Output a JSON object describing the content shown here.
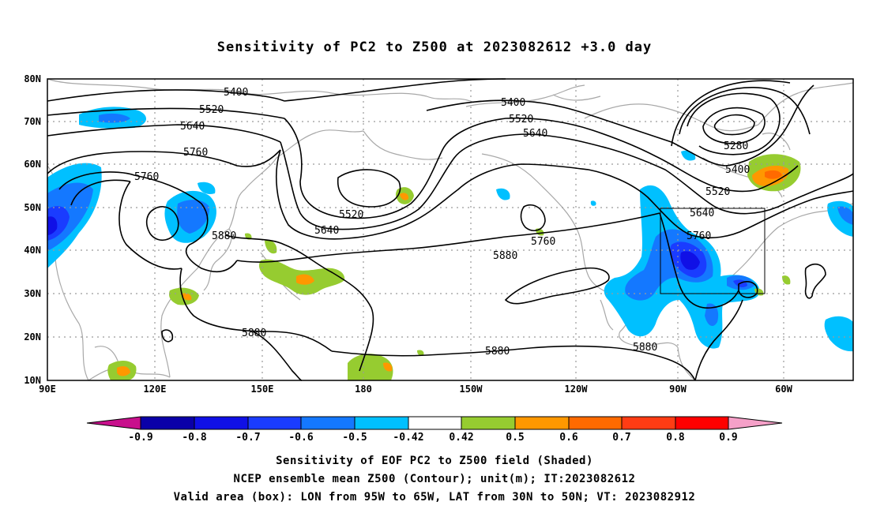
{
  "title": "Sensitivity of PC2 to Z500 at 2023082612 +3.0 day",
  "map": {
    "lat_ticks": [
      "80N",
      "70N",
      "60N",
      "50N",
      "40N",
      "30N",
      "20N",
      "10N"
    ],
    "lon_ticks": [
      "90E",
      "120E",
      "150E",
      "180",
      "150W",
      "120W",
      "90W",
      "60W"
    ],
    "contour_labels": [
      "5400",
      "5520",
      "5640",
      "5760",
      "5760",
      "5880",
      "5400",
      "5520",
      "5640",
      "5520",
      "5640",
      "5760",
      "5880",
      "5880",
      "5880",
      "5880",
      "5280",
      "5400",
      "5520",
      "5640",
      "5760"
    ],
    "valid_box": {
      "lon": [
        "95W",
        "65W"
      ],
      "lat": [
        "30N",
        "50N"
      ]
    }
  },
  "colorbar": {
    "labels": [
      "-0.9",
      "-0.8",
      "-0.7",
      "-0.6",
      "-0.5",
      "-0.42",
      "0.42",
      "0.5",
      "0.6",
      "0.7",
      "0.8",
      "0.9"
    ],
    "colors": {
      "lt_-0.9": "#c8108c",
      "-0.9_-0.8": "#0a00a8",
      "-0.8_-0.7": "#1010e6",
      "-0.7_-0.6": "#1a3cff",
      "-0.6_-0.5": "#1478ff",
      "-0.5_-0.42": "#00c0ff",
      "neutral": "#ffffff",
      "0.42_0.5": "#96cc30",
      "0.5_0.6": "#ff9800",
      "0.6_0.7": "#ff6a00",
      "0.7_0.8": "#ff3c14",
      "0.8_0.9": "#ff0000",
      "gt_0.9": "#f5a0c8"
    }
  },
  "captions": [
    "Sensitivity of EOF PC2 to Z500 field (Shaded)",
    "NCEP ensemble mean Z500 (Contour); unit(m); IT:2023082612",
    "Valid area (box): LON from 95W to 65W, LAT from 30N to 50N; VT: 2023082912"
  ]
}
